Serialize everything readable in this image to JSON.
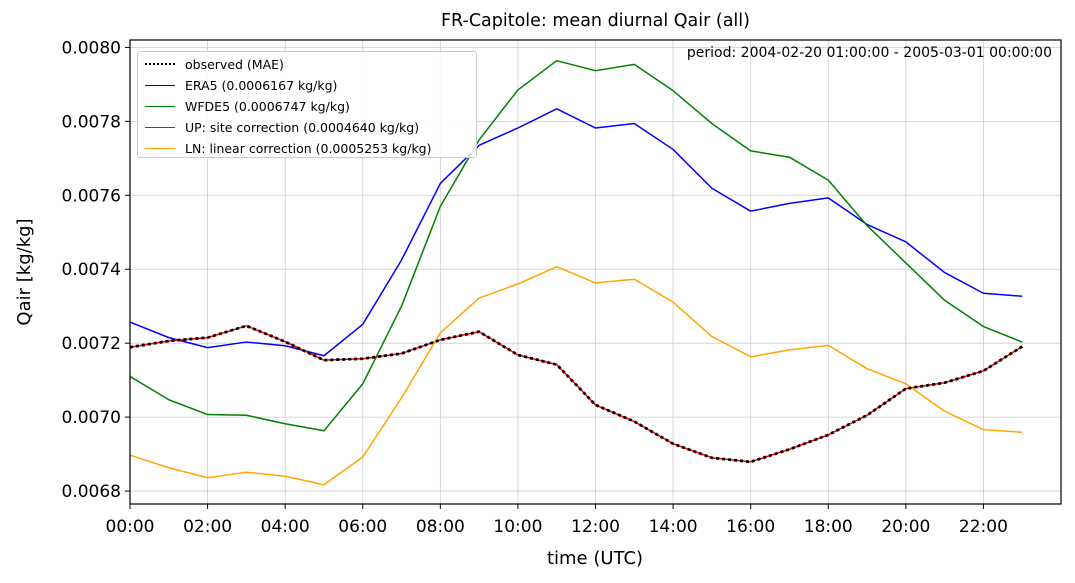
{
  "chart_data": {
    "type": "line",
    "title": "FR-Capitole: mean diurnal Qair (all)",
    "annotation": "period: 2004-02-20 01:00:00 - 2005-03-01 00:00:00",
    "xlabel": "time (UTC)",
    "ylabel": "Qair [kg/kg]",
    "xlim": [
      0,
      24
    ],
    "ylim": [
      0.006765,
      0.00802
    ],
    "grid": true,
    "legend_position": "top-left",
    "x": [
      0,
      1,
      2,
      3,
      4,
      5,
      6,
      7,
      8,
      9,
      10,
      11,
      12,
      13,
      14,
      15,
      16,
      17,
      18,
      19,
      20,
      21,
      22,
      23
    ],
    "x_tick_values": [
      0,
      2,
      4,
      6,
      8,
      10,
      12,
      14,
      16,
      18,
      20,
      22
    ],
    "x_tick_labels": [
      "00:00",
      "02:00",
      "04:00",
      "06:00",
      "08:00",
      "10:00",
      "12:00",
      "14:00",
      "16:00",
      "18:00",
      "20:00",
      "22:00"
    ],
    "y_tick_values": [
      0.0068,
      0.007,
      0.0072,
      0.0074,
      0.0076,
      0.0078,
      0.008
    ],
    "y_tick_labels": [
      "0.0068",
      "0.0070",
      "0.0072",
      "0.0074",
      "0.0076",
      "0.0078",
      "0.0080"
    ],
    "series": [
      {
        "name": "observed (MAE)",
        "color": "#000000",
        "style": "dotted",
        "values": [
          0.007189,
          0.007206,
          0.007215,
          0.007247,
          0.007204,
          0.007154,
          0.007158,
          0.007172,
          0.007209,
          0.007231,
          0.007168,
          0.007142,
          0.007033,
          0.006988,
          0.006928,
          0.00689,
          0.006879,
          0.006913,
          0.006952,
          0.007005,
          0.007077,
          0.007093,
          0.007125,
          0.007191
        ]
      },
      {
        "name": "ERA5 (0.0006167 kg/kg)",
        "color": "#0000ff",
        "style": "solid",
        "values": [
          0.007257,
          0.007215,
          0.007188,
          0.007203,
          0.007193,
          0.007166,
          0.007251,
          0.007425,
          0.007632,
          0.007735,
          0.007782,
          0.007834,
          0.007782,
          0.007794,
          0.007724,
          0.007619,
          0.007557,
          0.007578,
          0.007593,
          0.007521,
          0.007474,
          0.007391,
          0.007335,
          0.007327
        ]
      },
      {
        "name": "WFDE5 (0.0006747 kg/kg)",
        "color": "#008000",
        "style": "solid",
        "values": [
          0.00711,
          0.007047,
          0.007007,
          0.007005,
          0.006982,
          0.006963,
          0.00709,
          0.0073,
          0.00757,
          0.00775,
          0.007885,
          0.007964,
          0.007937,
          0.007954,
          0.007883,
          0.007794,
          0.00772,
          0.007703,
          0.007641,
          0.007518,
          0.007417,
          0.007316,
          0.007245,
          0.007203
        ]
      },
      {
        "name": "UP: site correction (0.0004640 kg/kg)",
        "color": "#ff0000",
        "style": "solid",
        "values": [
          0.007189,
          0.007206,
          0.007215,
          0.007247,
          0.007204,
          0.007154,
          0.007158,
          0.007172,
          0.007209,
          0.007231,
          0.007168,
          0.007142,
          0.007033,
          0.006988,
          0.006928,
          0.00689,
          0.006879,
          0.006913,
          0.006952,
          0.007005,
          0.007077,
          0.007093,
          0.007125,
          0.007191
        ]
      },
      {
        "name": "LN: linear correction (0.0005253 kg/kg)",
        "color": "#ffa500",
        "style": "solid",
        "values": [
          0.006897,
          0.006863,
          0.006836,
          0.006851,
          0.00684,
          0.006817,
          0.006892,
          0.007052,
          0.007228,
          0.007322,
          0.00736,
          0.007407,
          0.007363,
          0.007373,
          0.007311,
          0.007218,
          0.007163,
          0.007182,
          0.007194,
          0.007131,
          0.00709,
          0.007016,
          0.006966,
          0.006959
        ]
      }
    ]
  }
}
